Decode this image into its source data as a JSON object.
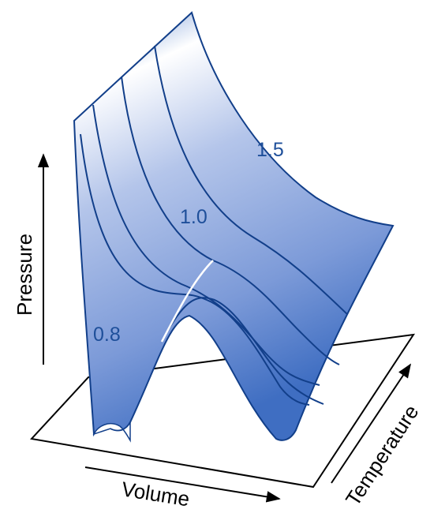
{
  "axes": {
    "pressure_label": "Pressure",
    "volume_label": "Volume",
    "temperature_label": "Temperature"
  },
  "isotherm_labels": {
    "low": "0.8",
    "critical": "1.0",
    "high": "1.5"
  },
  "colors": {
    "surface_light": "#ffffff",
    "surface_mid": "#9db2e2",
    "surface_dark": "#3f6ec2",
    "curve_stroke": "#123f8a",
    "label_color": "#1e4f9a",
    "coexistence_curve": "#ffffff",
    "axis_color": "#000000"
  }
}
